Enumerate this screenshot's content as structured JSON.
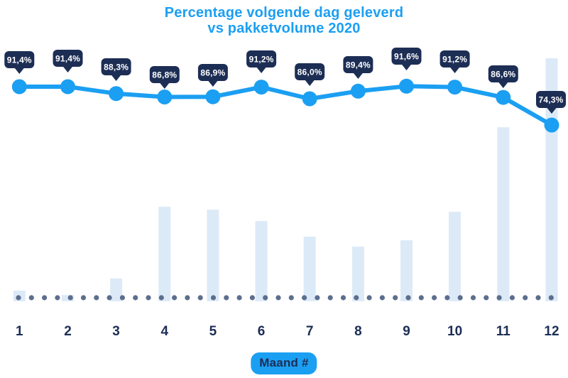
{
  "title": {
    "line1": "Percentage volgende dag geleverd",
    "line2": "vs pakketvolume 2020"
  },
  "x_axis": {
    "label_badge": "Maand #",
    "tick_labels": [
      "1",
      "2",
      "3",
      "4",
      "5",
      "6",
      "7",
      "8",
      "9",
      "10",
      "11",
      "12"
    ]
  },
  "chart_data": {
    "type": "line+bar",
    "title": "Percentage volgende dag geleverd vs pakketvolume 2020",
    "xlabel": "Maand #",
    "ylabel": "",
    "categories": [
      1,
      2,
      3,
      4,
      5,
      6,
      7,
      8,
      9,
      10,
      11,
      12
    ],
    "series": [
      {
        "name": "Percentage volgende dag geleverd",
        "type": "line",
        "unit": "%",
        "values": [
          91.4,
          91.4,
          88.3,
          86.8,
          86.9,
          91.2,
          86.0,
          89.4,
          91.6,
          91.2,
          86.6,
          74.3
        ],
        "labels": [
          "91,4%",
          "91,4%",
          "88,3%",
          "86,8%",
          "86,9%",
          "91,2%",
          "86,0%",
          "89,4%",
          "91,6%",
          "91,2%",
          "86,6%",
          "74,3%"
        ]
      },
      {
        "name": "Pakketvolume 2020",
        "type": "bar",
        "unit": "relative index (no axis shown, estimated from bar heights, max = 100)",
        "values": [
          4.4,
          2.6,
          9.4,
          38.9,
          37.7,
          33.0,
          26.6,
          22.5,
          25.1,
          36.8,
          71.6,
          100.0
        ]
      }
    ],
    "legend": "none",
    "grid": false,
    "baseline": "dotted"
  },
  "colors": {
    "accent_blue": "#1B9FF2",
    "navy": "#1D2E55",
    "bar_fill": "#DCEAF8",
    "dot_gray": "#5C6E8E",
    "tooltip_text": "#FFFFFF",
    "background": "#FFFFFF"
  }
}
